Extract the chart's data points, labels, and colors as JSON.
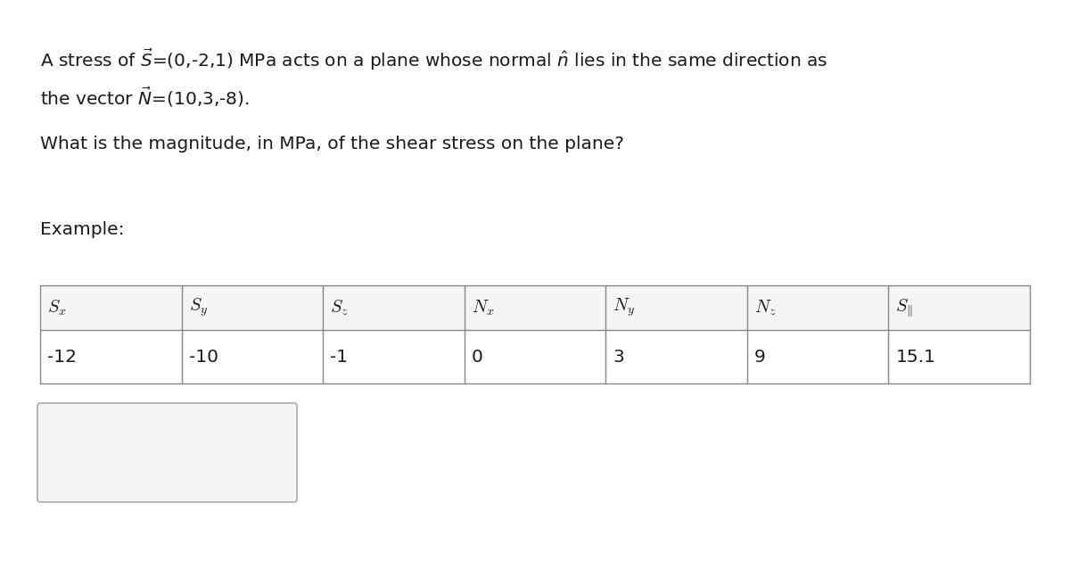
{
  "title_line1": "A stress of $\\vec{S}$=(0,-2,1) MPa acts on a plane whose normal $\\hat{n}$ lies in the same direction as",
  "title_line2": "the vector $\\vec{N}$=(10,3,-8).",
  "question": "What is the magnitude, in MPa, of the shear stress on the plane?",
  "example_label": "Example:",
  "table_headers": [
    "$S_x$",
    "$S_y$",
    "$S_z$",
    "$N_x$",
    "$N_y$",
    "$N_z$",
    "$S_{\\|}$"
  ],
  "table_values": [
    "-12",
    "-10",
    "-1",
    "0",
    "3",
    "9",
    "15.1"
  ],
  "bg_color": "#ffffff",
  "text_color": "#1a1a1a",
  "table_border_color": "#888888",
  "input_box_color": "#e8e8e8",
  "font_size": 14.5,
  "table_font_size": 14.5
}
